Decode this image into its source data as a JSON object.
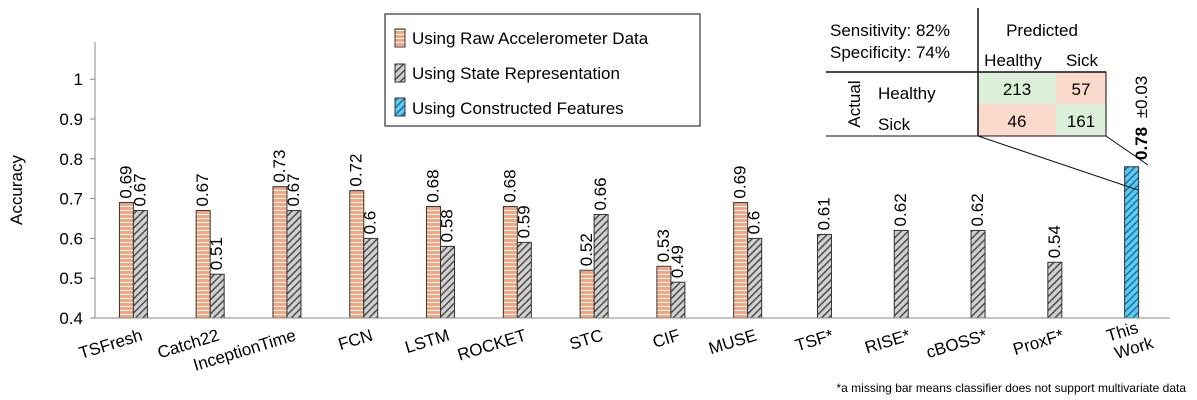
{
  "chart_data": {
    "type": "bar",
    "ylabel": "Accuracy",
    "ylim": [
      0.4,
      1.08
    ],
    "yticks": [
      "0.4",
      "0.5",
      "0.6",
      "0.7",
      "0.8",
      "0.9",
      "1"
    ],
    "categories": [
      "TSFresh",
      "Catch22",
      "InceptionTime",
      "FCN",
      "LSTM",
      "ROCKET",
      "STC",
      "CIF",
      "MUSE",
      "TSF*",
      "RISE*",
      "cBOSS*",
      "ProxF*",
      "This Work"
    ],
    "series": [
      {
        "name": "Using Raw Accelerometer Data",
        "pattern": "raw",
        "values": [
          0.69,
          0.67,
          0.73,
          0.72,
          0.68,
          0.68,
          0.52,
          0.53,
          0.69,
          null,
          null,
          null,
          null,
          null
        ],
        "labels": [
          "0.69",
          "0.67",
          "0.73",
          "0.72",
          "0.68",
          "0.68",
          "0.52",
          "0.53",
          "0.69",
          "",
          "",
          "",
          "",
          ""
        ]
      },
      {
        "name": "Using State Representation",
        "pattern": "state",
        "values": [
          0.67,
          0.51,
          0.67,
          0.6,
          0.58,
          0.59,
          0.66,
          0.49,
          0.6,
          0.61,
          0.62,
          0.62,
          0.54,
          null
        ],
        "labels": [
          "0.67",
          "0.51",
          "0.67",
          "0.6",
          "0.58",
          "0.59",
          "0.66",
          "0.49",
          "0.6",
          "0.61",
          "0.62",
          "0.62",
          "0.54",
          ""
        ]
      },
      {
        "name": "Using Constructed Features",
        "pattern": "constructed",
        "values": [
          null,
          null,
          null,
          null,
          null,
          null,
          null,
          null,
          null,
          null,
          null,
          null,
          null,
          0.78
        ],
        "labels": [
          "",
          "",
          "",
          "",
          "",
          "",
          "",
          "",
          "",
          "",
          "",
          "",
          "",
          ""
        ]
      }
    ],
    "this_work_label": {
      "value": "0.78",
      "error": "±0.03"
    },
    "footnote": "*a missing bar means classifier does not support multivariate data",
    "colors": {
      "raw": "#f4a582",
      "raw_stripe": "#ffffff",
      "state": "#d0d0d0",
      "state_stripe": "#444444",
      "constructed": "#5ecbf0",
      "constructed_stripe": "#1a6aa0",
      "cm_green": "#dcefd9",
      "cm_red": "#fbd9cb"
    }
  },
  "confusion_matrix": {
    "sensitivity": "Sensitivity: 82%",
    "specificity": "Specificity: 74%",
    "predicted_label": "Predicted",
    "actual_label": "Actual",
    "col_labels": [
      "Healthy",
      "Sick"
    ],
    "row_labels": [
      "Healthy",
      "Sick"
    ],
    "cells": [
      [
        "213",
        "57"
      ],
      [
        "46",
        "161"
      ]
    ]
  }
}
